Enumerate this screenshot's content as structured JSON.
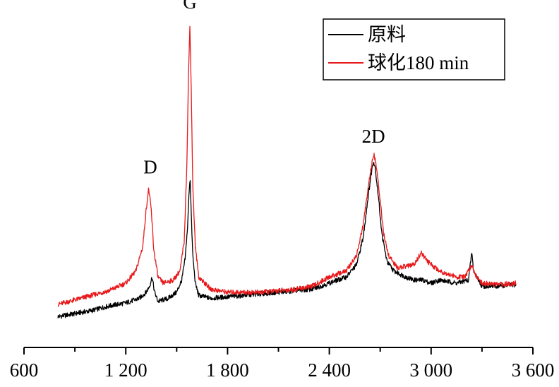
{
  "chart_data": {
    "type": "line",
    "title": "",
    "xlabel": "",
    "ylabel": "",
    "xlim": [
      600,
      3600
    ],
    "x_ticks": [
      600,
      1200,
      1800,
      2400,
      3000,
      3600
    ],
    "x_tick_labels": [
      "600",
      "1 200",
      "1 800",
      "2 400",
      "3 000",
      "3 600"
    ],
    "y_axis_visible": false,
    "ylim": [
      0,
      100
    ],
    "grid": false,
    "legend_position": "top-right",
    "series": [
      {
        "name": "原料",
        "color": "#000000",
        "points": [
          [
            800,
            5
          ],
          [
            900,
            6
          ],
          [
            1000,
            7
          ],
          [
            1100,
            8.5
          ],
          [
            1200,
            9.5
          ],
          [
            1280,
            11
          ],
          [
            1320,
            13
          ],
          [
            1340,
            15
          ],
          [
            1355,
            18
          ],
          [
            1370,
            13
          ],
          [
            1390,
            10
          ],
          [
            1450,
            11
          ],
          [
            1500,
            13
          ],
          [
            1530,
            17
          ],
          [
            1550,
            24
          ],
          [
            1565,
            35
          ],
          [
            1575,
            48
          ],
          [
            1580,
            50
          ],
          [
            1585,
            40
          ],
          [
            1595,
            25
          ],
          [
            1610,
            16
          ],
          [
            1630,
            12
          ],
          [
            1700,
            11
          ],
          [
            1800,
            11.5
          ],
          [
            1900,
            12
          ],
          [
            2000,
            12.5
          ],
          [
            2100,
            13
          ],
          [
            2200,
            13.5
          ],
          [
            2300,
            14
          ],
          [
            2400,
            16
          ],
          [
            2450,
            17
          ],
          [
            2500,
            18
          ],
          [
            2560,
            22
          ],
          [
            2600,
            31
          ],
          [
            2630,
            45
          ],
          [
            2650,
            53
          ],
          [
            2660,
            56
          ],
          [
            2670,
            54
          ],
          [
            2690,
            44
          ],
          [
            2710,
            32
          ],
          [
            2740,
            23
          ],
          [
            2780,
            20
          ],
          [
            2850,
            18
          ],
          [
            2900,
            17
          ],
          [
            2950,
            17
          ],
          [
            3000,
            16
          ],
          [
            3050,
            17
          ],
          [
            3100,
            16.5
          ],
          [
            3150,
            16
          ],
          [
            3220,
            17
          ],
          [
            3240,
            26
          ],
          [
            3250,
            20
          ],
          [
            3300,
            15
          ],
          [
            3400,
            15
          ],
          [
            3500,
            15.5
          ]
        ]
      },
      {
        "name": "球化180 min",
        "color": "#e8191b",
        "points": [
          [
            800,
            9
          ],
          [
            900,
            10.5
          ],
          [
            1000,
            12
          ],
          [
            1100,
            13.5
          ],
          [
            1200,
            16
          ],
          [
            1260,
            20
          ],
          [
            1300,
            28
          ],
          [
            1320,
            40
          ],
          [
            1335,
            47
          ],
          [
            1350,
            40
          ],
          [
            1365,
            27
          ],
          [
            1390,
            18
          ],
          [
            1420,
            16
          ],
          [
            1480,
            17
          ],
          [
            1520,
            20
          ],
          [
            1545,
            30
          ],
          [
            1560,
            55
          ],
          [
            1570,
            85
          ],
          [
            1578,
            100
          ],
          [
            1586,
            80
          ],
          [
            1595,
            48
          ],
          [
            1610,
            28
          ],
          [
            1630,
            18
          ],
          [
            1700,
            14
          ],
          [
            1800,
            13
          ],
          [
            1900,
            13
          ],
          [
            2000,
            13
          ],
          [
            2100,
            13.5
          ],
          [
            2200,
            14
          ],
          [
            2300,
            15
          ],
          [
            2400,
            18
          ],
          [
            2450,
            19
          ],
          [
            2500,
            20
          ],
          [
            2560,
            25
          ],
          [
            2600,
            35
          ],
          [
            2630,
            48
          ],
          [
            2650,
            55
          ],
          [
            2665,
            58
          ],
          [
            2680,
            53
          ],
          [
            2700,
            43
          ],
          [
            2720,
            32
          ],
          [
            2750,
            25
          ],
          [
            2800,
            21
          ],
          [
            2900,
            22
          ],
          [
            2940,
            26
          ],
          [
            2980,
            23
          ],
          [
            3050,
            20
          ],
          [
            3100,
            19
          ],
          [
            3150,
            18
          ],
          [
            3200,
            18
          ],
          [
            3240,
            22
          ],
          [
            3260,
            19
          ],
          [
            3300,
            16
          ],
          [
            3400,
            15.5
          ],
          [
            3500,
            16
          ]
        ]
      }
    ],
    "annotations": [
      {
        "text": "D",
        "x": 1345,
        "y": 52
      },
      {
        "text": "G",
        "x": 1578,
        "y": 106
      },
      {
        "text": "2D",
        "x": 2660,
        "y": 62
      }
    ],
    "legend": {
      "entries": [
        "原料",
        "球化180 min"
      ]
    }
  }
}
